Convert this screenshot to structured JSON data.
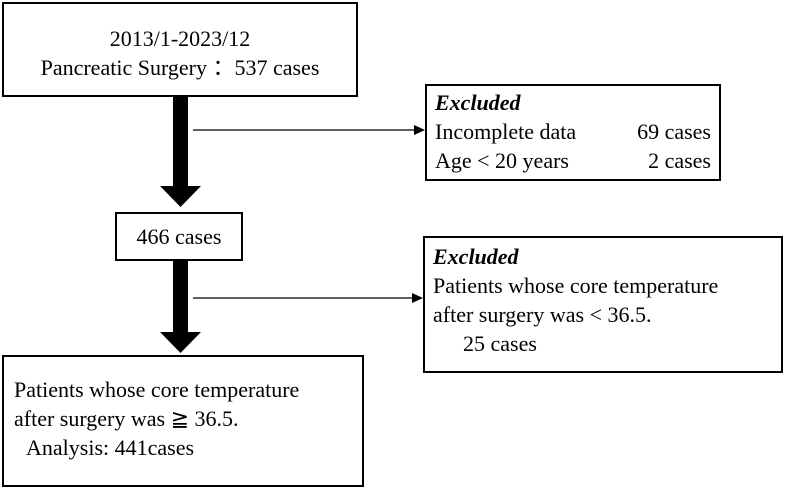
{
  "nodes": [
    {
      "lines": [
        "2013/1-2023/12",
        "Pancreatic Surgery ：537 cases"
      ]
    },
    {
      "lines": [
        "466 cases"
      ]
    },
    {
      "lines": [
        "Patients whose core temperature",
        "after surgery was ≧ 36.5.",
        "Analysis: 441cases"
      ]
    }
  ],
  "exclusions": [
    {
      "title": "Excluded",
      "rows": [
        [
          "Incomplete data",
          "69 cases"
        ],
        [
          "Age < 20 years",
          "2 cases"
        ]
      ]
    },
    {
      "title": "Excluded",
      "lines": [
        "Patients whose core temperature",
        "after surgery was < 36.5.",
        "25 cases"
      ]
    }
  ]
}
